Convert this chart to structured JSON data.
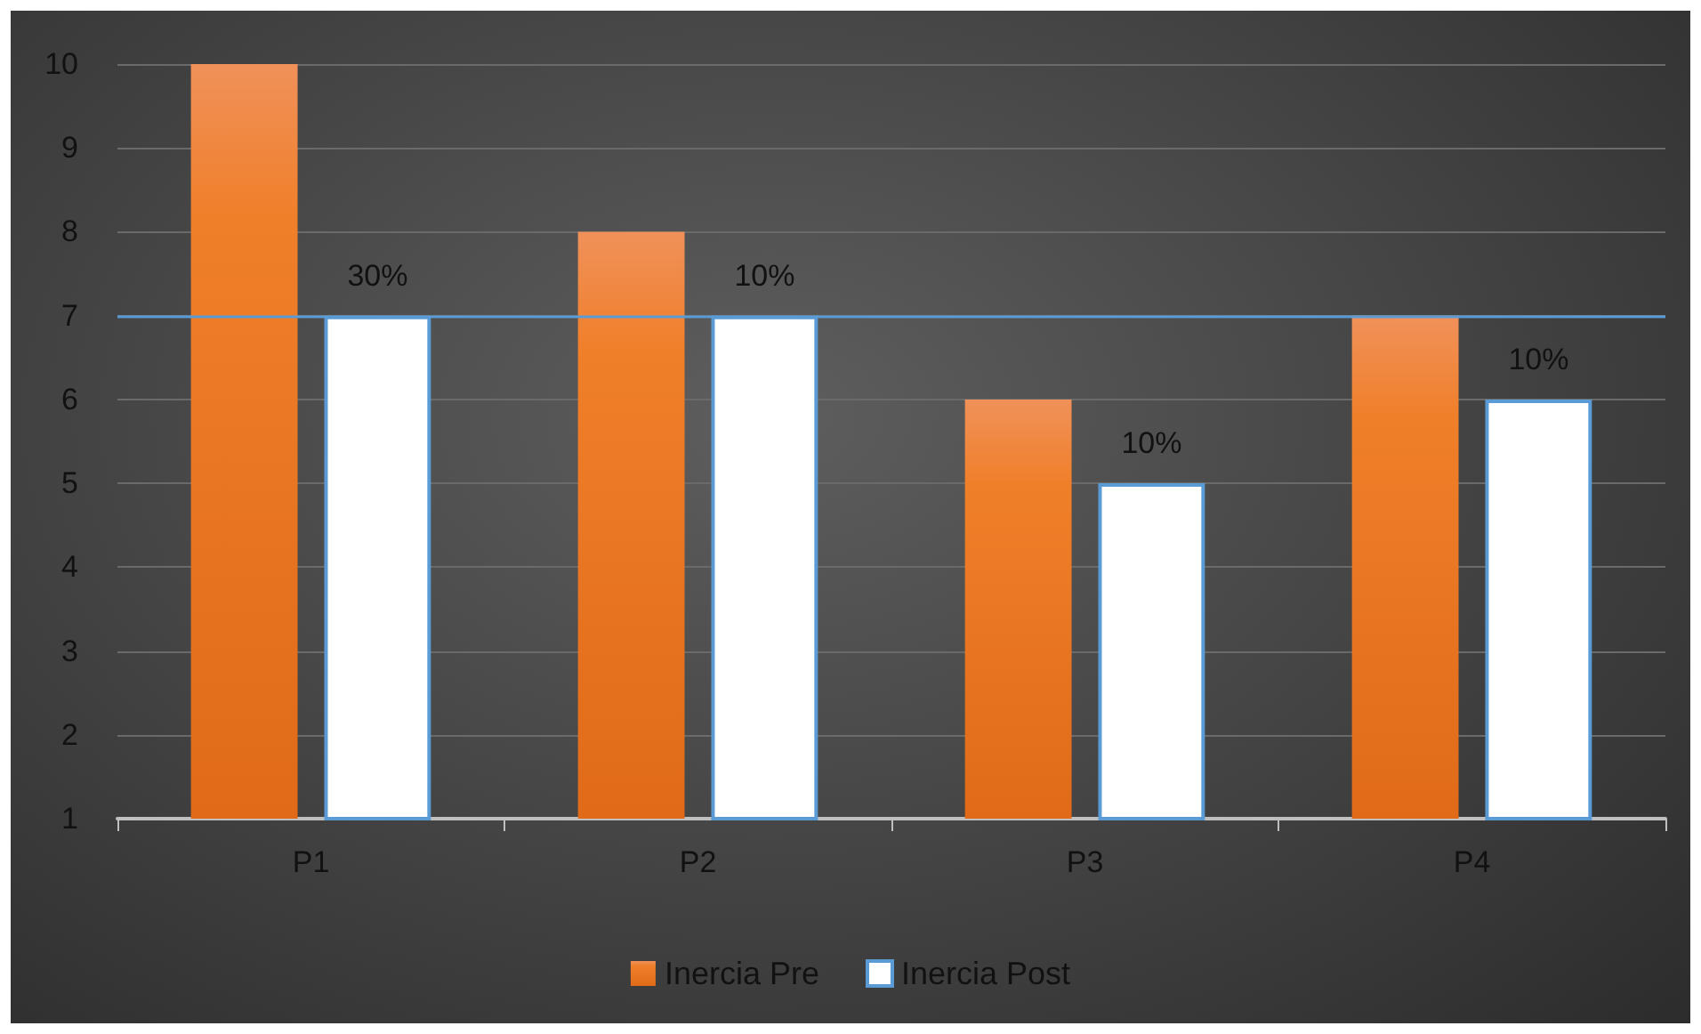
{
  "chart_data": {
    "type": "bar",
    "categories": [
      "P1",
      "P2",
      "P3",
      "P4"
    ],
    "series": [
      {
        "name": "Inercia Pre",
        "color": "#f07f2a",
        "values": [
          10,
          8,
          6,
          7
        ]
      },
      {
        "name": "Inercia Post",
        "color": "#ffffff",
        "values": [
          7,
          7,
          5,
          6
        ]
      }
    ],
    "annotations": [
      "30%",
      "10%",
      "10%",
      "10%"
    ],
    "ylim": [
      1,
      10
    ],
    "yticks": [
      1,
      2,
      3,
      4,
      5,
      6,
      7,
      8,
      9,
      10
    ],
    "grid": "y",
    "legend": "bottom",
    "ref_lines": [
      {
        "axis": "y",
        "value": 7,
        "color": "#5b9bd5"
      }
    ]
  }
}
